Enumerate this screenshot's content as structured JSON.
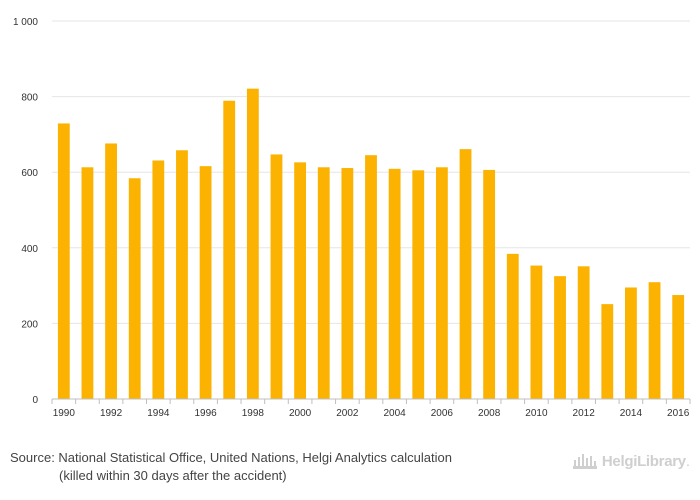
{
  "chart_data": {
    "type": "bar",
    "title": "",
    "xlabel": "",
    "ylabel": "",
    "ylim": [
      0,
      1000
    ],
    "yticks": [
      0,
      200,
      400,
      600,
      800,
      1000
    ],
    "ytick_labels": [
      "0",
      "200",
      "400",
      "600",
      "800",
      "1 000"
    ],
    "categories": [
      "1990",
      "1991",
      "1992",
      "1993",
      "1994",
      "1995",
      "1996",
      "1997",
      "1998",
      "1999",
      "2000",
      "2001",
      "2002",
      "2003",
      "2004",
      "2005",
      "2006",
      "2007",
      "2008",
      "2009",
      "2010",
      "2011",
      "2012",
      "2013",
      "2014",
      "2015",
      "2016"
    ],
    "xtick_labels": [
      "1990",
      "",
      "1992",
      "",
      "1994",
      "",
      "1996",
      "",
      "1998",
      "",
      "2000",
      "",
      "2002",
      "",
      "2004",
      "",
      "2006",
      "",
      "2008",
      "",
      "2010",
      "",
      "2012",
      "",
      "2014",
      "",
      "2016"
    ],
    "values": [
      729,
      613,
      676,
      584,
      631,
      658,
      616,
      789,
      821,
      647,
      626,
      613,
      611,
      645,
      609,
      605,
      613,
      661,
      606,
      384,
      353,
      325,
      351,
      251,
      295,
      309,
      275
    ],
    "grid": true,
    "bar_color": "#fbb200"
  },
  "footer": {
    "source_line1": "Source: National Statistical Office, United Nations, Helgi Analytics calculation",
    "source_line2": "(killed within 30 days after the accident)",
    "brand_name": "HelgiLibrary",
    "brand_suffix": ".",
    "brand_color": "#cfcfcf"
  }
}
